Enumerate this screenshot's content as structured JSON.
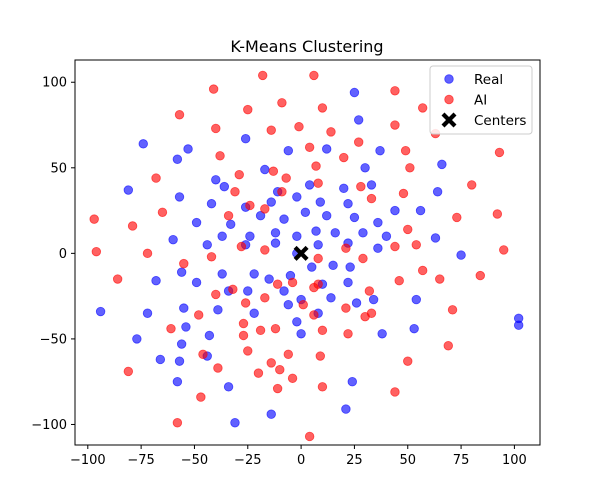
{
  "chart_data": {
    "type": "scatter",
    "title": "K-Means Clustering",
    "xlabel": "",
    "ylabel": "",
    "xlim": [
      -106,
      112
    ],
    "ylim": [
      -112,
      113
    ],
    "xticks": [
      -100,
      -75,
      -50,
      -25,
      0,
      25,
      50,
      75,
      100
    ],
    "yticks": [
      -100,
      -50,
      0,
      50,
      100
    ],
    "xtick_labels": [
      "−100",
      "−75",
      "−50",
      "−25",
      "0",
      "25",
      "50",
      "75",
      "100"
    ],
    "ytick_labels": [
      "−100",
      "−50",
      "0",
      "50",
      "100"
    ],
    "grid": false,
    "legend_position": "top-right",
    "series": [
      {
        "name": "Real",
        "color": "#0000ff",
        "marker": "circle",
        "points": [
          [
            25,
            94
          ],
          [
            -74,
            64
          ],
          [
            -53,
            61
          ],
          [
            27,
            78
          ],
          [
            -58,
            55
          ],
          [
            37,
            60
          ],
          [
            -26,
            67
          ],
          [
            12,
            61
          ],
          [
            -40,
            43
          ],
          [
            -17,
            49
          ],
          [
            -6,
            60
          ],
          [
            30,
            50
          ],
          [
            -81,
            37
          ],
          [
            -57,
            33
          ],
          [
            -36,
            39
          ],
          [
            -11,
            36
          ],
          [
            4,
            40
          ],
          [
            20,
            38
          ],
          [
            33,
            40
          ],
          [
            -42,
            29
          ],
          [
            -26,
            27
          ],
          [
            -14,
            30
          ],
          [
            -2,
            33
          ],
          [
            9,
            30
          ],
          [
            22,
            29
          ],
          [
            56,
            25
          ],
          [
            66,
            52
          ],
          [
            64,
            36
          ],
          [
            -49,
            18
          ],
          [
            -33,
            17
          ],
          [
            -19,
            22
          ],
          [
            -8,
            20
          ],
          [
            2,
            24
          ],
          [
            12,
            22
          ],
          [
            25,
            21
          ],
          [
            36,
            18
          ],
          [
            44,
            25
          ],
          [
            -60,
            8
          ],
          [
            -37,
            10
          ],
          [
            -24,
            10
          ],
          [
            -12,
            12
          ],
          [
            -2,
            10
          ],
          [
            7,
            13
          ],
          [
            16,
            12
          ],
          [
            29,
            12
          ],
          [
            40,
            10
          ],
          [
            63,
            9
          ],
          [
            -44,
            5
          ],
          [
            -26,
            5
          ],
          [
            -12,
            6
          ],
          [
            -2,
            0
          ],
          [
            8,
            5
          ],
          [
            22,
            6
          ],
          [
            36,
            3
          ],
          [
            -68,
            -16
          ],
          [
            -56,
            -11
          ],
          [
            -37,
            -12
          ],
          [
            -22,
            -12
          ],
          [
            -15,
            -15
          ],
          [
            -5,
            -13
          ],
          [
            5,
            -8
          ],
          [
            15,
            -7
          ],
          [
            23,
            -8
          ],
          [
            75,
            -1
          ],
          [
            -49,
            -17
          ],
          [
            -34,
            -22
          ],
          [
            -25,
            -22
          ],
          [
            -8,
            -22
          ],
          [
            0,
            -27
          ],
          [
            10,
            -18
          ],
          [
            22,
            -17
          ],
          [
            34,
            -27
          ],
          [
            -55,
            -32
          ],
          [
            -39,
            -33
          ],
          [
            -22,
            -35
          ],
          [
            -6,
            -30
          ],
          [
            14,
            -26
          ],
          [
            26,
            -29
          ],
          [
            54,
            -27
          ],
          [
            -77,
            -50
          ],
          [
            -54,
            -43
          ],
          [
            -43,
            -48
          ],
          [
            -2,
            -40
          ],
          [
            8,
            -35
          ],
          [
            -72,
            -35
          ],
          [
            -94,
            -34
          ],
          [
            38,
            -47
          ],
          [
            -56,
            -53
          ],
          [
            -44,
            -60
          ],
          [
            -66,
            -62
          ],
          [
            -57,
            -63
          ],
          [
            0,
            -47
          ],
          [
            53,
            -44
          ],
          [
            -58,
            -75
          ],
          [
            24,
            -75
          ],
          [
            -34,
            -78
          ],
          [
            -14,
            -94
          ],
          [
            -31,
            -99
          ],
          [
            21,
            -91
          ],
          [
            102,
            -38
          ],
          [
            102,
            -42
          ]
        ]
      },
      {
        "name": "AI",
        "color": "#ff0000",
        "marker": "circle",
        "points": [
          [
            -18,
            104
          ],
          [
            6,
            104
          ],
          [
            -41,
            96
          ],
          [
            44,
            95
          ],
          [
            -9,
            88
          ],
          [
            10,
            85
          ],
          [
            -25,
            84
          ],
          [
            -57,
            81
          ],
          [
            57,
            85
          ],
          [
            -40,
            73
          ],
          [
            -14,
            72
          ],
          [
            -1,
            74
          ],
          [
            14,
            71
          ],
          [
            44,
            75
          ],
          [
            -38,
            57
          ],
          [
            27,
            65
          ],
          [
            63,
            70
          ],
          [
            -68,
            44
          ],
          [
            -29,
            46
          ],
          [
            -13,
            48
          ],
          [
            4,
            62
          ],
          [
            20,
            56
          ],
          [
            49,
            60
          ],
          [
            -65,
            24
          ],
          [
            -7,
            44
          ],
          [
            8,
            41
          ],
          [
            28,
            39
          ],
          [
            51,
            50
          ],
          [
            -31,
            36
          ],
          [
            -9,
            36
          ],
          [
            7,
            51
          ],
          [
            33,
            32
          ],
          [
            48,
            35
          ],
          [
            -79,
            16
          ],
          [
            -34,
            22
          ],
          [
            -24,
            28
          ],
          [
            -17,
            26
          ],
          [
            50,
            14
          ],
          [
            80,
            40
          ],
          [
            93,
            59
          ],
          [
            -97,
            20
          ],
          [
            -72,
            0
          ],
          [
            -28,
            4
          ],
          [
            -17,
            2
          ],
          [
            21,
            3
          ],
          [
            44,
            4
          ],
          [
            54,
            5
          ],
          [
            73,
            21
          ],
          [
            -96,
            1
          ],
          [
            -55,
            -6
          ],
          [
            -42,
            -2
          ],
          [
            -11,
            -18
          ],
          [
            8,
            -3
          ],
          [
            29,
            -3
          ],
          [
            46,
            -16
          ],
          [
            57,
            -10
          ],
          [
            92,
            23
          ],
          [
            95,
            2
          ],
          [
            -86,
            -15
          ],
          [
            -48,
            -36
          ],
          [
            -32,
            -21
          ],
          [
            -17,
            -26
          ],
          [
            8,
            -18
          ],
          [
            32,
            -22
          ],
          [
            65,
            -15
          ],
          [
            84,
            -13
          ],
          [
            -61,
            -44
          ],
          [
            -40,
            -24
          ],
          [
            -26,
            -29
          ],
          [
            -4,
            -17
          ],
          [
            21,
            -32
          ],
          [
            30,
            -37
          ],
          [
            -81,
            -69
          ],
          [
            -46,
            -59
          ],
          [
            -27,
            -48
          ],
          [
            -19,
            -45
          ],
          [
            6,
            -20
          ],
          [
            33,
            -35
          ],
          [
            71,
            -33
          ],
          [
            -27,
            -41
          ],
          [
            -12,
            -44
          ],
          [
            1,
            -30
          ],
          [
            22,
            -47
          ],
          [
            69,
            -54
          ],
          [
            -39,
            -67
          ],
          [
            -25,
            -57
          ],
          [
            -14,
            -64
          ],
          [
            6,
            -36
          ],
          [
            10,
            -45
          ],
          [
            50,
            -63
          ],
          [
            -47,
            -84
          ],
          [
            -20,
            -70
          ],
          [
            -10,
            -68
          ],
          [
            -6,
            -59
          ],
          [
            9,
            -60
          ],
          [
            -11,
            -79
          ],
          [
            -4,
            -73
          ],
          [
            10,
            -78
          ],
          [
            44,
            -81
          ],
          [
            -58,
            -99
          ],
          [
            4,
            -107
          ]
        ]
      },
      {
        "name": "Centers",
        "color": "#000000",
        "marker": "x",
        "points": [
          [
            0,
            0
          ]
        ]
      }
    ]
  }
}
